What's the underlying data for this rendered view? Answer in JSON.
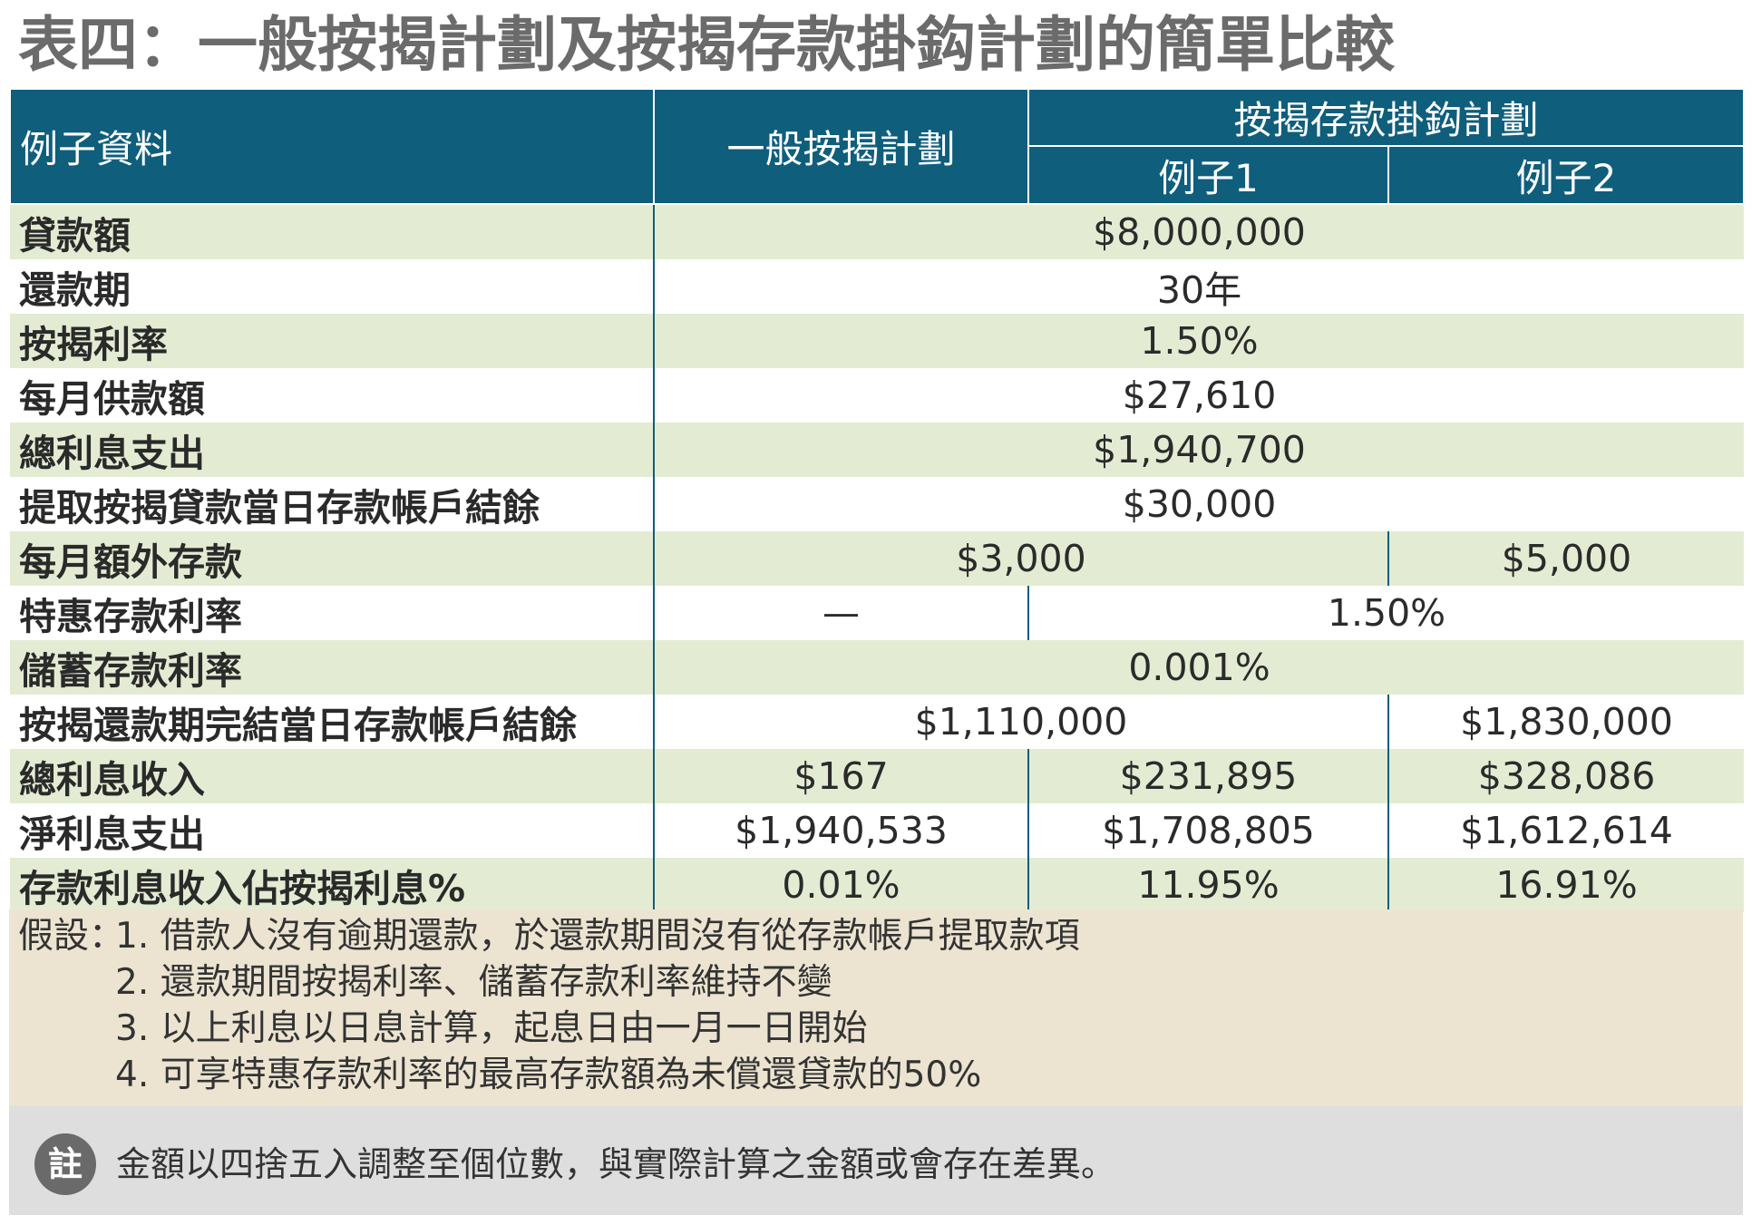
{
  "title": "表四：一般按揭計劃及按揭存款掛鈎計劃的簡單比較",
  "header": {
    "col_example": "例子資料",
    "col_general": "一般按揭計劃",
    "col_linked": "按揭存款掛鈎計劃",
    "sub_example1": "例子1",
    "sub_example2": "例子2"
  },
  "rows": {
    "loan_amount": {
      "label": "貸款額",
      "value": "$8,000,000"
    },
    "repayment_period": {
      "label": "還款期",
      "value": "30年"
    },
    "mortgage_rate": {
      "label": "按揭利率",
      "value": "1.50%"
    },
    "monthly_payment": {
      "label": "每月供款額",
      "value": "$27,610"
    },
    "total_interest_expense": {
      "label": "總利息支出",
      "value": "$1,940,700"
    },
    "balance_at_drawdown": {
      "label": "提取按揭貸款當日存款帳戶結餘",
      "value": "$30,000"
    },
    "extra_monthly_deposit": {
      "label": "每月額外存款",
      "value_general_ex1": "$3,000",
      "value_ex2": "$5,000"
    },
    "preferential_rate": {
      "label": "特惠存款利率",
      "value_general": "—",
      "value_linked": "1.50%"
    },
    "savings_rate": {
      "label": "儲蓄存款利率",
      "value": "0.001%"
    },
    "balance_at_end": {
      "label": "按揭還款期完結當日存款帳戶結餘",
      "value_general_ex1": "$1,110,000",
      "value_ex2": "$1,830,000"
    },
    "total_interest_income": {
      "label": "總利息收入",
      "general": "$167",
      "ex1": "$231,895",
      "ex2": "$328,086"
    },
    "net_interest_expense": {
      "label": "淨利息支出",
      "general": "$1,940,533",
      "ex1": "$1,708,805",
      "ex2": "$1,612,614"
    },
    "interest_income_ratio": {
      "label": "存款利息收入佔按揭利息%",
      "general": "0.01%",
      "ex1": "11.95%",
      "ex2": "16.91%"
    }
  },
  "assumptions": {
    "prefix": "假設：",
    "items": [
      "1. 借款人沒有逾期還款，於還款期間沒有從存款帳戶提取款項",
      "2. 還款期間按揭利率、儲蓄存款利率維持不變",
      "3. 以上利息以日息計算，起息日由一月一日開始",
      "4. 可享特惠存款利率的最高存款額為未償還貸款的50%"
    ]
  },
  "footnote": {
    "badge": "註",
    "text": "金額以四捨五入調整至個位數，與實際計算之金額或會存在差異。"
  },
  "colors": {
    "header_bg": "#0f5e7c",
    "row_alt_bg": "#e3ecd3",
    "notes_bg": "#ece4d1",
    "footnote_bg": "#dedede"
  }
}
